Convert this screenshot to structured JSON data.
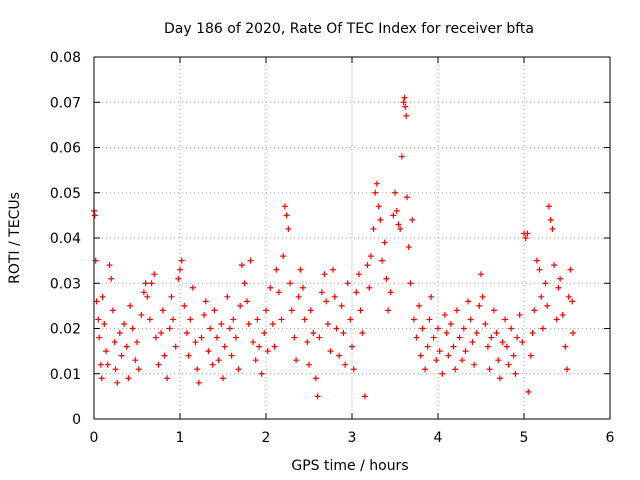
{
  "chart_data": {
    "type": "scatter",
    "title": "Day 186 of 2020, Rate Of TEC Index for receiver bfta",
    "xlabel": "GPS time / hours",
    "ylabel": "ROTI / TECUs",
    "xlim": [
      0,
      6
    ],
    "ylim": [
      0,
      0.08
    ],
    "x_ticks": [
      "0",
      "1",
      "2",
      "3",
      "4",
      "5",
      "6"
    ],
    "y_ticks": [
      "0",
      "0.01",
      "0.02",
      "0.03",
      "0.04",
      "0.05",
      "0.06",
      "0.07",
      "0.08"
    ],
    "grid": true,
    "marker": "+",
    "color": "#ff0000",
    "points": [
      [
        0.0,
        0.046
      ],
      [
        0.01,
        0.045
      ],
      [
        0.02,
        0.035
      ],
      [
        0.03,
        0.026
      ],
      [
        0.05,
        0.022
      ],
      [
        0.06,
        0.018
      ],
      [
        0.08,
        0.012
      ],
      [
        0.09,
        0.009
      ],
      [
        0.1,
        0.027
      ],
      [
        0.12,
        0.021
      ],
      [
        0.14,
        0.015
      ],
      [
        0.16,
        0.012
      ],
      [
        0.18,
        0.034
      ],
      [
        0.2,
        0.031
      ],
      [
        0.22,
        0.024
      ],
      [
        0.24,
        0.017
      ],
      [
        0.25,
        0.011
      ],
      [
        0.27,
        0.008
      ],
      [
        0.3,
        0.019
      ],
      [
        0.32,
        0.014
      ],
      [
        0.35,
        0.021
      ],
      [
        0.38,
        0.016
      ],
      [
        0.4,
        0.009
      ],
      [
        0.42,
        0.025
      ],
      [
        0.45,
        0.02
      ],
      [
        0.48,
        0.013
      ],
      [
        0.5,
        0.017
      ],
      [
        0.52,
        0.011
      ],
      [
        0.55,
        0.023
      ],
      [
        0.58,
        0.028
      ],
      [
        0.6,
        0.03
      ],
      [
        0.62,
        0.027
      ],
      [
        0.65,
        0.022
      ],
      [
        0.67,
        0.03
      ],
      [
        0.7,
        0.032
      ],
      [
        0.72,
        0.018
      ],
      [
        0.75,
        0.012
      ],
      [
        0.78,
        0.019
      ],
      [
        0.8,
        0.024
      ],
      [
        0.82,
        0.014
      ],
      [
        0.85,
        0.009
      ],
      [
        0.88,
        0.02
      ],
      [
        0.9,
        0.027
      ],
      [
        0.92,
        0.022
      ],
      [
        0.95,
        0.016
      ],
      [
        0.98,
        0.031
      ],
      [
        1.0,
        0.033
      ],
      [
        1.02,
        0.035
      ],
      [
        1.05,
        0.025
      ],
      [
        1.08,
        0.019
      ],
      [
        1.1,
        0.014
      ],
      [
        1.12,
        0.022
      ],
      [
        1.15,
        0.029
      ],
      [
        1.18,
        0.017
      ],
      [
        1.2,
        0.011
      ],
      [
        1.22,
        0.008
      ],
      [
        1.25,
        0.018
      ],
      [
        1.28,
        0.023
      ],
      [
        1.3,
        0.026
      ],
      [
        1.33,
        0.015
      ],
      [
        1.35,
        0.02
      ],
      [
        1.38,
        0.012
      ],
      [
        1.4,
        0.024
      ],
      [
        1.43,
        0.018
      ],
      [
        1.45,
        0.013
      ],
      [
        1.48,
        0.021
      ],
      [
        1.5,
        0.009
      ],
      [
        1.52,
        0.016
      ],
      [
        1.55,
        0.027
      ],
      [
        1.58,
        0.02
      ],
      [
        1.6,
        0.014
      ],
      [
        1.62,
        0.022
      ],
      [
        1.65,
        0.018
      ],
      [
        1.68,
        0.011
      ],
      [
        1.7,
        0.025
      ],
      [
        1.72,
        0.034
      ],
      [
        1.75,
        0.03
      ],
      [
        1.78,
        0.026
      ],
      [
        1.8,
        0.021
      ],
      [
        1.82,
        0.035
      ],
      [
        1.85,
        0.017
      ],
      [
        1.88,
        0.013
      ],
      [
        1.9,
        0.022
      ],
      [
        1.92,
        0.016
      ],
      [
        1.95,
        0.01
      ],
      [
        1.98,
        0.019
      ],
      [
        2.0,
        0.024
      ],
      [
        2.02,
        0.015
      ],
      [
        2.05,
        0.029
      ],
      [
        2.08,
        0.021
      ],
      [
        2.1,
        0.016
      ],
      [
        2.12,
        0.033
      ],
      [
        2.15,
        0.028
      ],
      [
        2.18,
        0.022
      ],
      [
        2.2,
        0.036
      ],
      [
        2.22,
        0.047
      ],
      [
        2.24,
        0.045
      ],
      [
        2.26,
        0.042
      ],
      [
        2.28,
        0.03
      ],
      [
        2.3,
        0.024
      ],
      [
        2.33,
        0.018
      ],
      [
        2.35,
        0.013
      ],
      [
        2.38,
        0.027
      ],
      [
        2.4,
        0.033
      ],
      [
        2.43,
        0.029
      ],
      [
        2.45,
        0.022
      ],
      [
        2.48,
        0.017
      ],
      [
        2.5,
        0.012
      ],
      [
        2.52,
        0.024
      ],
      [
        2.55,
        0.019
      ],
      [
        2.58,
        0.009
      ],
      [
        2.6,
        0.005
      ],
      [
        2.62,
        0.018
      ],
      [
        2.65,
        0.028
      ],
      [
        2.68,
        0.032
      ],
      [
        2.7,
        0.026
      ],
      [
        2.72,
        0.021
      ],
      [
        2.75,
        0.015
      ],
      [
        2.78,
        0.033
      ],
      [
        2.8,
        0.027
      ],
      [
        2.82,
        0.02
      ],
      [
        2.85,
        0.014
      ],
      [
        2.88,
        0.025
      ],
      [
        2.9,
        0.019
      ],
      [
        2.92,
        0.012
      ],
      [
        2.95,
        0.03
      ],
      [
        2.98,
        0.022
      ],
      [
        3.0,
        0.016
      ],
      [
        3.02,
        0.011
      ],
      [
        3.05,
        0.028
      ],
      [
        3.08,
        0.032
      ],
      [
        3.1,
        0.024
      ],
      [
        3.12,
        0.019
      ],
      [
        3.15,
        0.005
      ],
      [
        3.18,
        0.034
      ],
      [
        3.2,
        0.029
      ],
      [
        3.22,
        0.036
      ],
      [
        3.25,
        0.042
      ],
      [
        3.27,
        0.05
      ],
      [
        3.29,
        0.052
      ],
      [
        3.31,
        0.047
      ],
      [
        3.33,
        0.044
      ],
      [
        3.35,
        0.035
      ],
      [
        3.38,
        0.039
      ],
      [
        3.4,
        0.031
      ],
      [
        3.42,
        0.024
      ],
      [
        3.45,
        0.028
      ],
      [
        3.48,
        0.045
      ],
      [
        3.5,
        0.05
      ],
      [
        3.52,
        0.046
      ],
      [
        3.54,
        0.043
      ],
      [
        3.56,
        0.042
      ],
      [
        3.58,
        0.058
      ],
      [
        3.6,
        0.07
      ],
      [
        3.61,
        0.071
      ],
      [
        3.62,
        0.069
      ],
      [
        3.63,
        0.067
      ],
      [
        3.64,
        0.049
      ],
      [
        3.66,
        0.038
      ],
      [
        3.68,
        0.03
      ],
      [
        3.7,
        0.044
      ],
      [
        3.72,
        0.022
      ],
      [
        3.75,
        0.018
      ],
      [
        3.78,
        0.025
      ],
      [
        3.8,
        0.014
      ],
      [
        3.82,
        0.02
      ],
      [
        3.85,
        0.011
      ],
      [
        3.88,
        0.016
      ],
      [
        3.9,
        0.022
      ],
      [
        3.92,
        0.027
      ],
      [
        3.95,
        0.018
      ],
      [
        3.98,
        0.013
      ],
      [
        4.0,
        0.02
      ],
      [
        4.02,
        0.015
      ],
      [
        4.05,
        0.01
      ],
      [
        4.08,
        0.023
      ],
      [
        4.1,
        0.019
      ],
      [
        4.12,
        0.014
      ],
      [
        4.15,
        0.021
      ],
      [
        4.18,
        0.016
      ],
      [
        4.2,
        0.011
      ],
      [
        4.22,
        0.024
      ],
      [
        4.25,
        0.018
      ],
      [
        4.28,
        0.013
      ],
      [
        4.3,
        0.02
      ],
      [
        4.32,
        0.015
      ],
      [
        4.35,
        0.026
      ],
      [
        4.38,
        0.022
      ],
      [
        4.4,
        0.017
      ],
      [
        4.42,
        0.012
      ],
      [
        4.45,
        0.019
      ],
      [
        4.48,
        0.025
      ],
      [
        4.5,
        0.032
      ],
      [
        4.52,
        0.027
      ],
      [
        4.55,
        0.021
      ],
      [
        4.58,
        0.016
      ],
      [
        4.6,
        0.011
      ],
      [
        4.62,
        0.018
      ],
      [
        4.65,
        0.024
      ],
      [
        4.68,
        0.019
      ],
      [
        4.7,
        0.013
      ],
      [
        4.72,
        0.009
      ],
      [
        4.75,
        0.017
      ],
      [
        4.78,
        0.022
      ],
      [
        4.8,
        0.016
      ],
      [
        4.82,
        0.012
      ],
      [
        4.85,
        0.02
      ],
      [
        4.88,
        0.014
      ],
      [
        4.9,
        0.01
      ],
      [
        4.92,
        0.018
      ],
      [
        4.95,
        0.023
      ],
      [
        4.98,
        0.017
      ],
      [
        5.0,
        0.041
      ],
      [
        5.02,
        0.04
      ],
      [
        5.04,
        0.041
      ],
      [
        5.05,
        0.006
      ],
      [
        5.08,
        0.014
      ],
      [
        5.1,
        0.019
      ],
      [
        5.12,
        0.024
      ],
      [
        5.15,
        0.035
      ],
      [
        5.18,
        0.033
      ],
      [
        5.2,
        0.027
      ],
      [
        5.22,
        0.02
      ],
      [
        5.25,
        0.03
      ],
      [
        5.27,
        0.025
      ],
      [
        5.29,
        0.047
      ],
      [
        5.31,
        0.044
      ],
      [
        5.33,
        0.042
      ],
      [
        5.35,
        0.034
      ],
      [
        5.38,
        0.022
      ],
      [
        5.4,
        0.029
      ],
      [
        5.42,
        0.031
      ],
      [
        5.45,
        0.023
      ],
      [
        5.48,
        0.016
      ],
      [
        5.5,
        0.011
      ],
      [
        5.52,
        0.027
      ],
      [
        5.54,
        0.033
      ],
      [
        5.56,
        0.026
      ],
      [
        5.57,
        0.019
      ]
    ]
  }
}
